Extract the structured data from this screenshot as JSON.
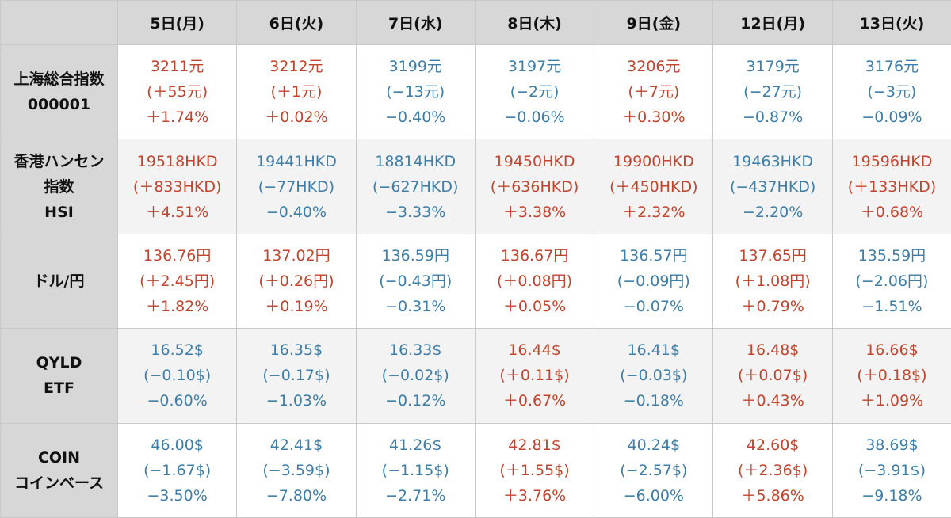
{
  "colors": {
    "up": "#c0452e",
    "down": "#3e7ea6",
    "header_bg": "#d7d7d7",
    "alt_row_bg": "#f3f3f3"
  },
  "headers": [
    "5日(月)",
    "6日(火)",
    "7日(水)",
    "8日(木)",
    "9日(金)",
    "12日(月)",
    "13日(火)"
  ],
  "rows": [
    {
      "label": [
        "上海総合指数",
        "000001"
      ],
      "cells": [
        {
          "dir": "up",
          "price": "3211元",
          "change": "(＋55元)",
          "pct": "＋1.74%"
        },
        {
          "dir": "up",
          "price": "3212元",
          "change": "(＋1元)",
          "pct": "＋0.02%"
        },
        {
          "dir": "down",
          "price": "3199元",
          "change": "(−13元)",
          "pct": "−0.40%"
        },
        {
          "dir": "down",
          "price": "3197元",
          "change": "(−2元)",
          "pct": "−0.06%"
        },
        {
          "dir": "up",
          "price": "3206元",
          "change": "(＋7元)",
          "pct": "＋0.30%"
        },
        {
          "dir": "down",
          "price": "3179元",
          "change": "(−27元)",
          "pct": "−0.87%"
        },
        {
          "dir": "down",
          "price": "3176元",
          "change": "(−3元)",
          "pct": "−0.09%"
        }
      ]
    },
    {
      "label": [
        "香港ハンセン",
        "指数",
        "HSI"
      ],
      "cells": [
        {
          "dir": "up",
          "price": "19518HKD",
          "change": "(＋833HKD)",
          "pct": "＋4.51%"
        },
        {
          "dir": "down",
          "price": "19441HKD",
          "change": "(−77HKD)",
          "pct": "−0.40%"
        },
        {
          "dir": "down",
          "price": "18814HKD",
          "change": "(−627HKD)",
          "pct": "−3.33%"
        },
        {
          "dir": "up",
          "price": "19450HKD",
          "change": "(＋636HKD)",
          "pct": "＋3.38%"
        },
        {
          "dir": "up",
          "price": "19900HKD",
          "change": "(＋450HKD)",
          "pct": "＋2.32%"
        },
        {
          "dir": "down",
          "price": "19463HKD",
          "change": "(−437HKD)",
          "pct": "−2.20%"
        },
        {
          "dir": "up",
          "price": "19596HKD",
          "change": "(＋133HKD)",
          "pct": "＋0.68%"
        }
      ]
    },
    {
      "label": [
        "ドル/円"
      ],
      "cells": [
        {
          "dir": "up",
          "price": "136.76円",
          "change": "(＋2.45円)",
          "pct": "＋1.82%"
        },
        {
          "dir": "up",
          "price": "137.02円",
          "change": "(＋0.26円)",
          "pct": "＋0.19%"
        },
        {
          "dir": "down",
          "price": "136.59円",
          "change": "(−0.43円)",
          "pct": "−0.31%"
        },
        {
          "dir": "up",
          "price": "136.67円",
          "change": "(＋0.08円)",
          "pct": "＋0.05%"
        },
        {
          "dir": "down",
          "price": "136.57円",
          "change": "(−0.09円)",
          "pct": "−0.07%"
        },
        {
          "dir": "up",
          "price": "137.65円",
          "change": "(＋1.08円)",
          "pct": "＋0.79%"
        },
        {
          "dir": "down",
          "price": "135.59円",
          "change": "(−2.06円)",
          "pct": "−1.51%"
        }
      ]
    },
    {
      "label": [
        "QYLD",
        "ETF"
      ],
      "cells": [
        {
          "dir": "down",
          "price": "16.52$",
          "change": "(−0.10$)",
          "pct": "−0.60%"
        },
        {
          "dir": "down",
          "price": "16.35$",
          "change": "(−0.17$)",
          "pct": "−1.03%"
        },
        {
          "dir": "down",
          "price": "16.33$",
          "change": "(−0.02$)",
          "pct": "−0.12%"
        },
        {
          "dir": "up",
          "price": "16.44$",
          "change": "(＋0.11$)",
          "pct": "＋0.67%"
        },
        {
          "dir": "down",
          "price": "16.41$",
          "change": "(−0.03$)",
          "pct": "−0.18%"
        },
        {
          "dir": "up",
          "price": "16.48$",
          "change": "(＋0.07$)",
          "pct": "＋0.43%"
        },
        {
          "dir": "up",
          "price": "16.66$",
          "change": "(＋0.18$)",
          "pct": "＋1.09%"
        }
      ]
    },
    {
      "label": [
        "COIN",
        "コインベース"
      ],
      "cells": [
        {
          "dir": "down",
          "price": "46.00$",
          "change": "(−1.67$)",
          "pct": "−3.50%"
        },
        {
          "dir": "down",
          "price": "42.41$",
          "change": "(−3.59$)",
          "pct": "−7.80%"
        },
        {
          "dir": "down",
          "price": "41.26$",
          "change": "(−1.15$)",
          "pct": "−2.71%"
        },
        {
          "dir": "up",
          "price": "42.81$",
          "change": "(＋1.55$)",
          "pct": "＋3.76%"
        },
        {
          "dir": "down",
          "price": "40.24$",
          "change": "(−2.57$)",
          "pct": "−6.00%"
        },
        {
          "dir": "up",
          "price": "42.60$",
          "change": "(＋2.36$)",
          "pct": "＋5.86%"
        },
        {
          "dir": "down",
          "price": "38.69$",
          "change": "(−3.91$)",
          "pct": "−9.18%"
        }
      ]
    }
  ]
}
